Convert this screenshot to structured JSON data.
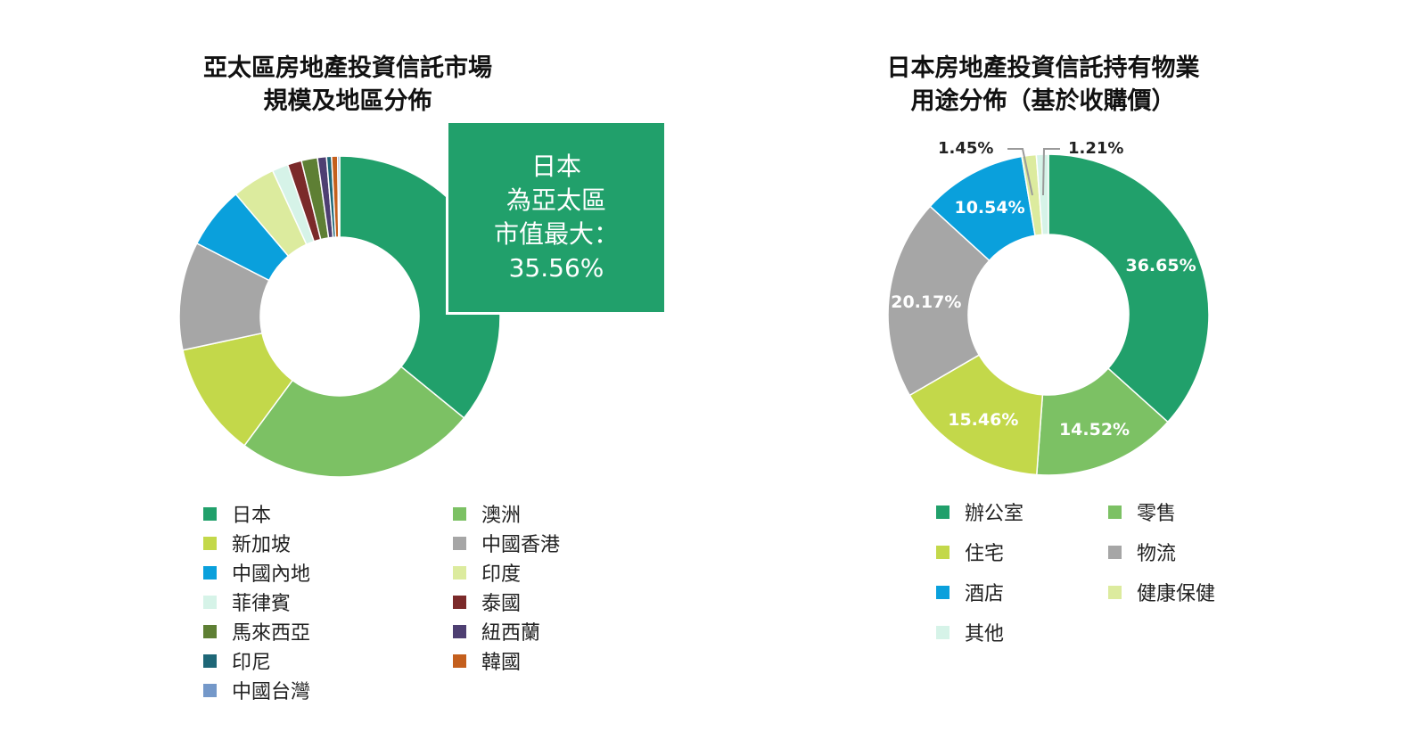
{
  "charts": {
    "left": {
      "title_line1": "亞太區房地產投資信託市場",
      "title_line2": "規模及地區分佈",
      "callout": {
        "line1": "日本",
        "line2": "為亞太區",
        "line3": "市值最大：",
        "line4": "35.56%"
      }
    },
    "right": {
      "title_line1": "日本房地產投資信託持有物業",
      "title_line2": "用途分佈（基於收購價）"
    }
  },
  "chart_data": [
    {
      "type": "pie",
      "donut": true,
      "title": "亞太區房地產投資信託市場規模及地區分佈",
      "categories": [
        "日本",
        "澳洲",
        "新加坡",
        "中國香港",
        "中國內地",
        "印度",
        "菲律賓",
        "泰國",
        "馬來西亞",
        "紐西蘭",
        "印尼",
        "韓國",
        "中國台灣"
      ],
      "values": [
        35.56,
        24.0,
        11.4,
        10.8,
        6.2,
        4.3,
        1.6,
        1.4,
        1.6,
        0.9,
        0.5,
        0.6,
        0.2
      ],
      "colors": [
        "#21a06b",
        "#7cc164",
        "#c3d84a",
        "#a6a6a6",
        "#0aa0dc",
        "#dceb9e",
        "#d6f3e8",
        "#7b2a2a",
        "#5e7f34",
        "#4e3f72",
        "#1e6777",
        "#c45f1d",
        "#7498c9"
      ],
      "legend": [
        {
          "label": "日本",
          "color": "#21a06b"
        },
        {
          "label": "澳洲",
          "color": "#7cc164"
        },
        {
          "label": "新加坡",
          "color": "#c3d84a"
        },
        {
          "label": "中國香港",
          "color": "#a6a6a6"
        },
        {
          "label": "中國內地",
          "color": "#0aa0dc"
        },
        {
          "label": "印度",
          "color": "#dceb9e"
        },
        {
          "label": "菲律賓",
          "color": "#d6f3e8"
        },
        {
          "label": "泰國",
          "color": "#7b2a2a"
        },
        {
          "label": "馬來西亞",
          "color": "#5e7f34"
        },
        {
          "label": "紐西蘭",
          "color": "#4e3f72"
        },
        {
          "label": "印尼",
          "color": "#1e6777"
        },
        {
          "label": "韓國",
          "color": "#c45f1d"
        },
        {
          "label": "中國台灣",
          "color": "#7498c9"
        }
      ],
      "legend_position": "bottom"
    },
    {
      "type": "pie",
      "donut": true,
      "title": "日本房地產投資信託持有物業用途分佈（基於收購價）",
      "categories": [
        "辦公室",
        "零售",
        "住宅",
        "物流",
        "酒店",
        "健康保健",
        "其他"
      ],
      "values": [
        36.65,
        14.52,
        15.46,
        20.17,
        10.54,
        1.45,
        1.21
      ],
      "labels": [
        "36.65%",
        "14.52%",
        "15.46%",
        "20.17%",
        "10.54%",
        "1.45%",
        "1.21%"
      ],
      "colors": [
        "#21a06b",
        "#7cc164",
        "#c3d84a",
        "#a6a6a6",
        "#0aa0dc",
        "#dceb9e",
        "#d6f3e8"
      ],
      "legend": [
        {
          "label": "辦公室",
          "color": "#21a06b"
        },
        {
          "label": "零售",
          "color": "#7cc164"
        },
        {
          "label": "住宅",
          "color": "#c3d84a"
        },
        {
          "label": "物流",
          "color": "#a6a6a6"
        },
        {
          "label": "酒店",
          "color": "#0aa0dc"
        },
        {
          "label": "健康保健",
          "color": "#dceb9e"
        },
        {
          "label": "其他",
          "color": "#d6f3e8"
        }
      ],
      "legend_position": "bottom"
    }
  ]
}
